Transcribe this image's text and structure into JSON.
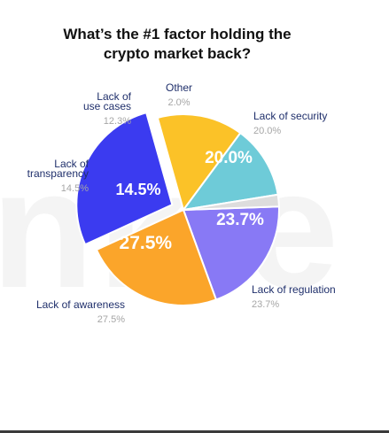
{
  "chart_data": {
    "type": "pie",
    "title_lines": [
      "What’s the #1 factor holding the",
      "crypto market back?"
    ],
    "slices": [
      {
        "label": "Lack of security",
        "label_lines": [
          "Lack of security"
        ],
        "value": 20.0,
        "display": "20.0%",
        "sub": "20.0%",
        "color": "#8879f5"
      },
      {
        "label": "Lack of regulation",
        "label_lines": [
          "Lack of regulation"
        ],
        "value": 23.7,
        "display": "23.7%",
        "sub": "23.7%",
        "color": "#fba52a"
      },
      {
        "label": "Lack of awareness",
        "label_lines": [
          "Lack of awareness"
        ],
        "value": 27.5,
        "display": "27.5%",
        "sub": "27.5%",
        "color": "#3b3bf0",
        "exploded": true
      },
      {
        "label": "Lack of transparency",
        "label_lines": [
          "Lack of",
          "transparency"
        ],
        "value": 14.5,
        "display": "14.5%",
        "sub": "14.5%",
        "color": "#fbc228"
      },
      {
        "label": "Lack of use cases",
        "label_lines": [
          "Lack of",
          "use cases"
        ],
        "value": 12.3,
        "display": "",
        "sub": "12.3%",
        "color": "#6ecbd8"
      },
      {
        "label": "Other",
        "label_lines": [
          "Other"
        ],
        "value": 2.0,
        "display": "",
        "sub": "2.0%",
        "color": "#dddddd"
      }
    ],
    "legend": "none",
    "label_colors": {
      "name": "#1f2f6b",
      "value": "#a6a6a6",
      "inner": "#ffffff"
    }
  }
}
